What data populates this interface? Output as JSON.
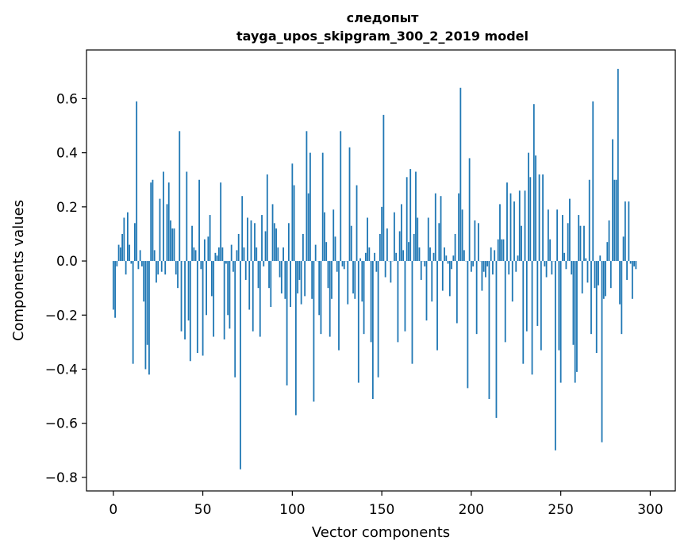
{
  "chart_data": {
    "type": "bar",
    "title": "следопыт",
    "subtitle": "tayga_upos_skipgram_300_2_2019 model",
    "xlabel": "Vector components",
    "ylabel": "Components values",
    "xlim": [
      -15,
      314
    ],
    "ylim": [
      -0.85,
      0.78
    ],
    "xticks": [
      0,
      50,
      100,
      150,
      200,
      250,
      300
    ],
    "yticks": [
      -0.8,
      -0.6,
      -0.4,
      -0.2,
      0.0,
      0.2,
      0.4,
      0.6
    ],
    "ytick_labels": [
      "−0.8",
      "−0.6",
      "−0.4",
      "−0.2",
      "0.0",
      "0.2",
      "0.4",
      "0.6"
    ],
    "bar_color": "#1f77b4",
    "values": [
      -0.18,
      -0.21,
      -0.02,
      0.06,
      0.05,
      0.1,
      0.16,
      -0.05,
      0.18,
      0.06,
      -0.01,
      -0.38,
      0.14,
      0.59,
      -0.03,
      0.04,
      -0.02,
      -0.15,
      -0.4,
      -0.31,
      -0.42,
      0.29,
      0.3,
      0.04,
      -0.08,
      -0.05,
      0.23,
      -0.04,
      0.33,
      -0.05,
      0.21,
      0.29,
      0.15,
      0.12,
      0.12,
      -0.05,
      -0.1,
      0.48,
      -0.26,
      0.0,
      -0.29,
      0.33,
      -0.22,
      -0.37,
      0.13,
      0.05,
      0.04,
      -0.34,
      0.3,
      -0.03,
      -0.35,
      0.08,
      -0.2,
      0.09,
      0.17,
      -0.13,
      -0.28,
      0.03,
      0.02,
      0.05,
      0.29,
      0.05,
      -0.29,
      -0.01,
      -0.2,
      -0.25,
      0.06,
      -0.04,
      -0.43,
      0.04,
      0.1,
      -0.77,
      0.24,
      0.05,
      -0.07,
      0.16,
      -0.18,
      0.15,
      -0.26,
      0.14,
      0.05,
      -0.1,
      -0.28,
      0.17,
      -0.02,
      0.11,
      0.32,
      -0.1,
      -0.17,
      0.21,
      0.14,
      0.12,
      0.05,
      -0.06,
      -0.12,
      0.05,
      -0.14,
      -0.46,
      0.14,
      -0.17,
      0.36,
      0.28,
      -0.57,
      -0.12,
      -0.07,
      -0.16,
      0.1,
      -0.13,
      0.48,
      0.25,
      0.4,
      -0.14,
      -0.52,
      0.06,
      0.0,
      -0.2,
      -0.27,
      0.4,
      0.18,
      0.07,
      -0.1,
      -0.28,
      -0.14,
      0.19,
      0.09,
      -0.04,
      -0.33,
      0.48,
      -0.02,
      -0.03,
      0.0,
      -0.16,
      0.42,
      0.13,
      -0.12,
      -0.14,
      0.28,
      -0.45,
      0.01,
      -0.15,
      -0.27,
      0.03,
      0.16,
      0.05,
      -0.3,
      -0.51,
      0.03,
      -0.04,
      -0.43,
      0.1,
      0.2,
      0.54,
      -0.06,
      0.12,
      0.0,
      -0.08,
      0.0,
      0.18,
      0.03,
      -0.3,
      0.11,
      0.21,
      0.04,
      -0.26,
      0.31,
      0.07,
      0.34,
      -0.38,
      0.1,
      0.33,
      0.16,
      0.05,
      -0.07,
      0.0,
      -0.02,
      -0.22,
      0.16,
      0.05,
      -0.15,
      0.03,
      0.25,
      -0.33,
      0.14,
      0.24,
      -0.11,
      0.05,
      0.02,
      -0.01,
      -0.13,
      -0.03,
      0.02,
      0.1,
      -0.23,
      0.25,
      0.64,
      0.19,
      0.04,
      0.0,
      -0.47,
      0.38,
      -0.04,
      -0.02,
      0.15,
      -0.27,
      0.14,
      0.0,
      -0.11,
      -0.04,
      -0.06,
      -0.02,
      -0.51,
      0.05,
      -0.05,
      0.04,
      -0.58,
      0.08,
      0.21,
      0.08,
      0.08,
      -0.3,
      0.29,
      -0.05,
      0.25,
      -0.15,
      0.22,
      -0.04,
      0.02,
      0.26,
      0.13,
      -0.38,
      0.26,
      -0.26,
      0.4,
      0.31,
      -0.42,
      0.58,
      0.39,
      -0.24,
      0.32,
      -0.33,
      0.32,
      -0.02,
      -0.06,
      0.19,
      0.08,
      -0.05,
      0.0,
      -0.7,
      0.19,
      -0.33,
      -0.45,
      0.17,
      0.03,
      -0.03,
      0.14,
      0.23,
      -0.05,
      -0.31,
      -0.45,
      -0.41,
      0.17,
      0.13,
      -0.12,
      0.13,
      0.01,
      -0.08,
      0.3,
      -0.27,
      0.59,
      -0.1,
      -0.34,
      -0.09,
      0.02,
      -0.67,
      -0.14,
      -0.13,
      0.07,
      0.15,
      -0.1,
      0.45,
      0.3,
      0.3,
      0.71,
      -0.16,
      -0.27,
      0.09,
      0.22,
      -0.07,
      0.22,
      -0.01,
      -0.14,
      -0.02,
      -0.03
    ]
  }
}
